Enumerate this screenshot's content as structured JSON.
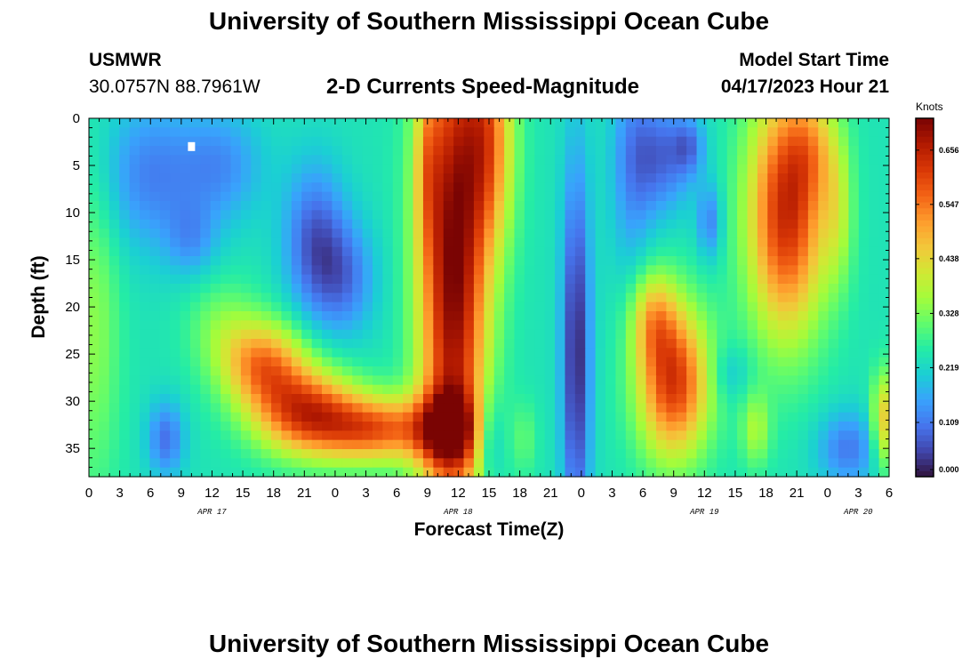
{
  "header": {
    "title": "University of Southern Mississippi Ocean Cube",
    "station": "USMWR",
    "coords": "30.0757N  88.7961W",
    "subtitle": "2-D Currents Speed-Magnitude",
    "model_label": "Model Start Time",
    "model_time": "04/17/2023 Hour 21",
    "footer_title": "University of Southern Mississippi Ocean Cube"
  },
  "chart_data": {
    "type": "heatmap",
    "title": "2-D Currents Speed-Magnitude",
    "xlabel": "Forecast Time(Z)",
    "ylabel": "Depth (ft)",
    "x_unit": "hours since APR 17 00Z",
    "xlim": [
      0,
      78
    ],
    "ylim": [
      38,
      0
    ],
    "x_ticks": [
      0,
      3,
      6,
      9,
      12,
      15,
      18,
      21,
      24,
      27,
      30,
      33,
      36,
      39,
      42,
      45,
      48,
      51,
      54,
      57,
      60,
      63,
      66,
      69,
      72,
      75,
      78
    ],
    "x_tick_labels": [
      "0",
      "3",
      "6",
      "9",
      "12",
      "15",
      "18",
      "21",
      "0",
      "3",
      "6",
      "9",
      "12",
      "15",
      "18",
      "21",
      "0",
      "3",
      "6",
      "9",
      "12",
      "15",
      "18",
      "21",
      "0",
      "3",
      "6"
    ],
    "y_ticks": [
      0,
      5,
      10,
      15,
      20,
      25,
      30,
      35
    ],
    "y_tick_labels": [
      "0",
      "5",
      "10",
      "15",
      "20",
      "25",
      "30",
      "35"
    ],
    "date_labels": [
      {
        "label": "APR 17",
        "x": 12
      },
      {
        "label": "APR 18",
        "x": 36
      },
      {
        "label": "APR 19",
        "x": 60
      },
      {
        "label": "APR 20",
        "x": 75
      }
    ],
    "colorbar": {
      "label": "Knots",
      "min": 0.0,
      "max": 0.72,
      "ticks": [
        0.0,
        0.109,
        0.219,
        0.328,
        0.438,
        0.547,
        0.656
      ],
      "tick_labels": [
        "0.000",
        "0.109",
        "0.219",
        "0.328",
        "0.438",
        "0.547",
        "0.656"
      ],
      "colormap": [
        "#30123b",
        "#4145ab",
        "#4675ed",
        "#39a2fc",
        "#1bcfd4",
        "#24eca6",
        "#61fc6c",
        "#a4fc3b",
        "#d1e834",
        "#f3c63a",
        "#fe9b2d",
        "#f36315",
        "#d93806",
        "#b11901",
        "#7a0403"
      ]
    },
    "marker": {
      "x": 10,
      "depth": 3,
      "color": "#ffffff"
    },
    "nx": 79,
    "ny": 39,
    "field": {
      "background": 0.24,
      "blobs": [
        {
          "x": 0.5,
          "d": 22,
          "rx": 2.5,
          "ry": 18,
          "a": 0.1
        },
        {
          "x": 6,
          "d": 6,
          "rx": 5,
          "ry": 8,
          "a": -0.12
        },
        {
          "x": 10,
          "d": 13,
          "rx": 2.5,
          "ry": 4,
          "a": -0.08
        },
        {
          "x": 13,
          "d": 5,
          "rx": 4,
          "ry": 6,
          "a": -0.1
        },
        {
          "x": 13,
          "d": 22,
          "rx": 3.5,
          "ry": 5,
          "a": 0.08
        },
        {
          "x": 7.5,
          "d": 34,
          "rx": 1.8,
          "ry": 4,
          "a": -0.14
        },
        {
          "x": 17,
          "d": 26,
          "rx": 4,
          "ry": 4.5,
          "a": 0.28
        },
        {
          "x": 21,
          "d": 31,
          "rx": 5,
          "ry": 4.5,
          "a": 0.34
        },
        {
          "x": 28,
          "d": 33,
          "rx": 6,
          "ry": 3.5,
          "a": 0.32
        },
        {
          "x": 35,
          "d": 33,
          "rx": 3,
          "ry": 4,
          "a": 0.26
        },
        {
          "x": 22,
          "d": 13,
          "rx": 3,
          "ry": 8,
          "a": -0.16
        },
        {
          "x": 25,
          "d": 17,
          "rx": 3,
          "ry": 6,
          "a": -0.12
        },
        {
          "x": 35.5,
          "d": 16,
          "rx": 3.3,
          "ry": 28,
          "a": 0.48
        },
        {
          "x": 39,
          "d": 2,
          "rx": 2.5,
          "ry": 12,
          "a": 0.26
        },
        {
          "x": 33,
          "d": 5,
          "rx": 1.2,
          "ry": 9,
          "a": 0.12
        },
        {
          "x": 39,
          "d": 34,
          "rx": 1.3,
          "ry": 5,
          "a": -0.12
        },
        {
          "x": 42.5,
          "d": 34,
          "rx": 1.2,
          "ry": 4,
          "a": 0.06
        },
        {
          "x": 47.5,
          "d": 25,
          "rx": 1.4,
          "ry": 20,
          "a": -0.22
        },
        {
          "x": 53,
          "d": 5,
          "rx": 2.2,
          "ry": 12,
          "a": -0.1
        },
        {
          "x": 57,
          "d": 28,
          "rx": 3.5,
          "ry": 8,
          "a": 0.38
        },
        {
          "x": 55,
          "d": 21,
          "rx": 2.2,
          "ry": 5,
          "a": 0.18
        },
        {
          "x": 56,
          "d": 4,
          "rx": 3,
          "ry": 6,
          "a": -0.14
        },
        {
          "x": 58.5,
          "d": 3,
          "rx": 1.5,
          "ry": 3,
          "a": -0.1
        },
        {
          "x": 60.5,
          "d": 11,
          "rx": 1.2,
          "ry": 4,
          "a": -0.12
        },
        {
          "x": 68,
          "d": 10,
          "rx": 3.8,
          "ry": 13,
          "a": 0.4
        },
        {
          "x": 70.5,
          "d": 3,
          "rx": 2.5,
          "ry": 6,
          "a": 0.12
        },
        {
          "x": 65,
          "d": 33,
          "rx": 1.4,
          "ry": 4,
          "a": 0.12
        },
        {
          "x": 74,
          "d": 35,
          "rx": 3,
          "ry": 4,
          "a": -0.13
        },
        {
          "x": 77.5,
          "d": 32,
          "rx": 1.2,
          "ry": 5,
          "a": 0.22
        },
        {
          "x": 73,
          "d": 10,
          "rx": 1.5,
          "ry": 8,
          "a": 0.1
        },
        {
          "x": 62.5,
          "d": 27,
          "rx": 2,
          "ry": 3,
          "a": -0.06
        }
      ]
    }
  }
}
